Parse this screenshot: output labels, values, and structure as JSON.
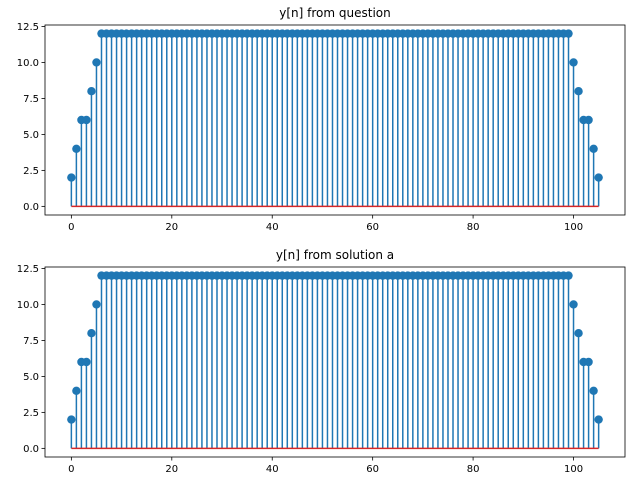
{
  "chart_data": [
    {
      "type": "stem",
      "title": "y[n] from question",
      "xlabel": "",
      "ylabel": "",
      "xlim": [
        -5.25,
        110.25
      ],
      "ylim": [
        -0.6,
        12.6
      ],
      "xticks": [
        "0",
        "20",
        "40",
        "60",
        "80",
        "100"
      ],
      "xtick_values": [
        0,
        20,
        40,
        60,
        80,
        100
      ],
      "yticks": [
        "0.0",
        "2.5",
        "5.0",
        "7.5",
        "10.0",
        "12.5"
      ],
      "ytick_values": [
        0,
        2.5,
        5,
        7.5,
        10,
        12.5
      ],
      "n_start": 0,
      "values": [
        2,
        4,
        6,
        6,
        8,
        10,
        12,
        12,
        12,
        12,
        12,
        12,
        12,
        12,
        12,
        12,
        12,
        12,
        12,
        12,
        12,
        12,
        12,
        12,
        12,
        12,
        12,
        12,
        12,
        12,
        12,
        12,
        12,
        12,
        12,
        12,
        12,
        12,
        12,
        12,
        12,
        12,
        12,
        12,
        12,
        12,
        12,
        12,
        12,
        12,
        12,
        12,
        12,
        12,
        12,
        12,
        12,
        12,
        12,
        12,
        12,
        12,
        12,
        12,
        12,
        12,
        12,
        12,
        12,
        12,
        12,
        12,
        12,
        12,
        12,
        12,
        12,
        12,
        12,
        12,
        12,
        12,
        12,
        12,
        12,
        12,
        12,
        12,
        12,
        12,
        12,
        12,
        12,
        12,
        12,
        12,
        12,
        12,
        12,
        12,
        10,
        8,
        6,
        6,
        4,
        2
      ],
      "marker_color": "#1f77b4",
      "stem_color": "#1f77b4",
      "baseline_color": "#d62728",
      "grid": false,
      "legend": "none"
    },
    {
      "type": "stem",
      "title": "y[n] from solution a",
      "xlabel": "",
      "ylabel": "",
      "xlim": [
        -5.25,
        110.25
      ],
      "ylim": [
        -0.6,
        12.6
      ],
      "xticks": [
        "0",
        "20",
        "40",
        "60",
        "80",
        "100"
      ],
      "xtick_values": [
        0,
        20,
        40,
        60,
        80,
        100
      ],
      "yticks": [
        "0.0",
        "2.5",
        "5.0",
        "7.5",
        "10.0",
        "12.5"
      ],
      "ytick_values": [
        0,
        2.5,
        5,
        7.5,
        10,
        12.5
      ],
      "n_start": 0,
      "values": [
        2,
        4,
        6,
        6,
        8,
        10,
        12,
        12,
        12,
        12,
        12,
        12,
        12,
        12,
        12,
        12,
        12,
        12,
        12,
        12,
        12,
        12,
        12,
        12,
        12,
        12,
        12,
        12,
        12,
        12,
        12,
        12,
        12,
        12,
        12,
        12,
        12,
        12,
        12,
        12,
        12,
        12,
        12,
        12,
        12,
        12,
        12,
        12,
        12,
        12,
        12,
        12,
        12,
        12,
        12,
        12,
        12,
        12,
        12,
        12,
        12,
        12,
        12,
        12,
        12,
        12,
        12,
        12,
        12,
        12,
        12,
        12,
        12,
        12,
        12,
        12,
        12,
        12,
        12,
        12,
        12,
        12,
        12,
        12,
        12,
        12,
        12,
        12,
        12,
        12,
        12,
        12,
        12,
        12,
        12,
        12,
        12,
        12,
        12,
        12,
        10,
        8,
        6,
        6,
        4,
        2
      ],
      "marker_color": "#1f77b4",
      "stem_color": "#1f77b4",
      "baseline_color": "#d62728",
      "grid": false,
      "legend": "none"
    }
  ]
}
